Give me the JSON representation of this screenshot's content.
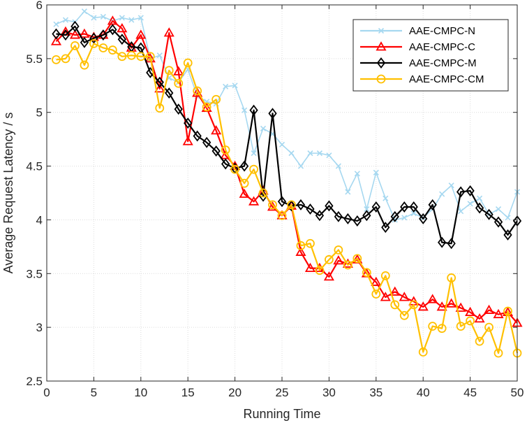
{
  "chart_data": {
    "type": "line",
    "title": "",
    "xlabel": "Running Time",
    "ylabel": "Average Request Latency / s",
    "xlim": [
      0,
      50
    ],
    "ylim": [
      2.5,
      6
    ],
    "xticks": [
      "0",
      "5",
      "10",
      "15",
      "20",
      "25",
      "30",
      "35",
      "40",
      "45",
      "50"
    ],
    "yticks": [
      "2.5",
      "3",
      "3.5",
      "4",
      "4.5",
      "5",
      "5.5",
      "6"
    ],
    "grid": true,
    "legend_position": "top-right",
    "x": [
      1,
      2,
      3,
      4,
      5,
      6,
      7,
      8,
      9,
      10,
      11,
      12,
      13,
      14,
      15,
      16,
      17,
      18,
      19,
      20,
      21,
      22,
      23,
      24,
      25,
      26,
      27,
      28,
      29,
      30,
      31,
      32,
      33,
      34,
      35,
      36,
      37,
      38,
      39,
      40,
      41,
      42,
      43,
      44,
      45,
      46,
      47,
      48,
      49,
      50
    ],
    "series": [
      {
        "name": "AAE-CMPC-N",
        "color": "#a6d8f0",
        "marker": "x",
        "values": [
          5.82,
          5.86,
          5.84,
          5.94,
          5.88,
          5.89,
          5.85,
          5.88,
          5.86,
          5.88,
          5.5,
          5.53,
          5.32,
          5.28,
          5.4,
          5.15,
          5.1,
          5.08,
          5.24,
          5.25,
          5.02,
          4.62,
          4.85,
          4.8,
          4.7,
          4.62,
          4.5,
          4.62,
          4.62,
          4.6,
          4.5,
          4.26,
          4.43,
          4.1,
          4.44,
          4.2,
          4.0,
          4.02,
          4.06,
          4.02,
          4.1,
          4.24,
          4.32,
          4.08,
          4.15,
          4.2,
          4.05,
          4.1,
          4.02,
          4.26
        ]
      },
      {
        "name": "AAE-CMPC-C",
        "color": "#ff0000",
        "marker": "triangle",
        "values": [
          5.66,
          5.75,
          5.72,
          5.73,
          5.7,
          5.72,
          5.85,
          5.78,
          5.6,
          5.72,
          5.5,
          5.22,
          5.74,
          5.38,
          4.73,
          5.18,
          5.04,
          4.83,
          4.6,
          4.5,
          4.24,
          4.17,
          4.27,
          4.12,
          4.04,
          4.13,
          3.7,
          3.55,
          3.55,
          3.47,
          3.62,
          3.59,
          3.63,
          3.5,
          3.42,
          3.28,
          3.33,
          3.28,
          3.24,
          3.19,
          3.26,
          3.19,
          3.22,
          3.18,
          3.14,
          3.08,
          3.16,
          3.12,
          3.14,
          3.04
        ]
      },
      {
        "name": "AAE-CMPC-M",
        "color": "#000000",
        "marker": "diamond",
        "values": [
          5.73,
          5.72,
          5.8,
          5.65,
          5.69,
          5.72,
          5.77,
          5.68,
          5.61,
          5.6,
          5.37,
          5.28,
          5.18,
          5.03,
          4.9,
          4.78,
          4.72,
          4.64,
          4.52,
          4.48,
          4.5,
          5.02,
          4.22,
          4.99,
          4.17,
          4.13,
          4.14,
          4.1,
          4.04,
          4.13,
          4.03,
          4.01,
          3.99,
          4.04,
          4.12,
          3.93,
          4.03,
          4.12,
          4.12,
          4.01,
          4.14,
          3.79,
          3.78,
          4.26,
          4.27,
          4.11,
          4.05,
          3.98,
          3.86,
          3.99
        ]
      },
      {
        "name": "AAE-CMPC-CM",
        "color": "#ffc000",
        "marker": "circle",
        "values": [
          5.49,
          5.5,
          5.62,
          5.44,
          5.64,
          5.6,
          5.58,
          5.52,
          5.53,
          5.52,
          5.52,
          5.04,
          5.39,
          5.27,
          5.46,
          5.2,
          5.05,
          5.12,
          4.65,
          4.47,
          4.34,
          4.47,
          4.25,
          4.14,
          4.04,
          4.14,
          3.76,
          3.78,
          3.53,
          3.63,
          3.72,
          3.58,
          3.64,
          3.51,
          3.31,
          3.48,
          3.21,
          3.11,
          3.21,
          2.77,
          3.01,
          2.99,
          3.46,
          3.01,
          3.06,
          2.87,
          3.0,
          2.76,
          3.15,
          2.76
        ]
      }
    ]
  }
}
